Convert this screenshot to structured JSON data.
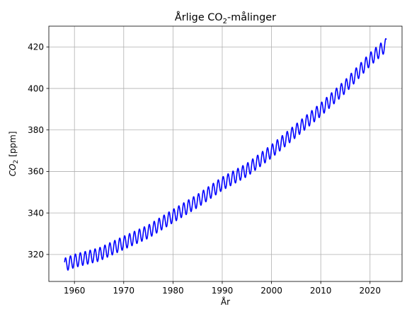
{
  "chart_data": {
    "type": "line",
    "title": "Årlige CO",
    "title_sub": "2",
    "title_suffix": "-målinger",
    "xlabel": "År",
    "ylabel_main": "CO",
    "ylabel_sub": "2",
    "ylabel_unit": "[ppm]",
    "xlim": [
      1954.8,
      2026.5
    ],
    "ylim": [
      307,
      430
    ],
    "xticks": [
      1960,
      1970,
      1980,
      1990,
      2000,
      2010,
      2020
    ],
    "xtick_labels": [
      "1960",
      "1970",
      "1980",
      "1990",
      "2000",
      "2010",
      "2020"
    ],
    "yticks": [
      320,
      340,
      360,
      380,
      400,
      420
    ],
    "ytick_labels": [
      "320",
      "340",
      "360",
      "380",
      "400",
      "420"
    ],
    "grid": true,
    "series": [
      {
        "color": "#0000ff",
        "x": [
          1958.0,
          1960.0,
          1965.0,
          1970.0,
          1975.0,
          1980.0,
          1985.0,
          1990.0,
          1995.0,
          2000.0,
          2005.0,
          2010.0,
          2015.0,
          2020.0,
          2023.3
        ],
        "y": [
          315.0,
          316.9,
          320.0,
          325.6,
          331.0,
          338.5,
          345.8,
          354.1,
          360.7,
          369.7,
          379.7,
          389.8,
          401.0,
          414.0,
          421.0
        ],
        "seasonal_amplitude_ppm": 3.2
      }
    ]
  }
}
